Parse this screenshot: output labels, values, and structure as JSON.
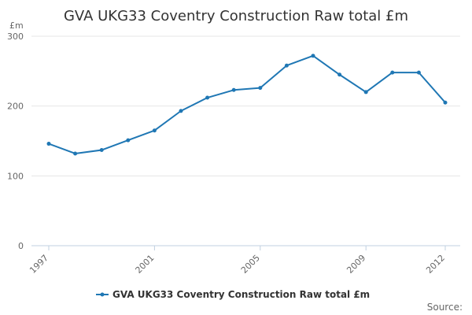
{
  "chart_data": {
    "type": "line",
    "title": "GVA UKG33 Coventry Construction Raw total £m",
    "unit_label": "£m",
    "source_label": "Source:",
    "x": [
      1997,
      1998,
      1999,
      2000,
      2001,
      2002,
      2003,
      2004,
      2005,
      2006,
      2007,
      2008,
      2009,
      2010,
      2011,
      2012
    ],
    "x_tick_labels": [
      "1997",
      "2001",
      "2005",
      "2009",
      "2012"
    ],
    "xlim": [
      1997,
      2012
    ],
    "y_ticks": [
      0,
      100,
      200,
      300
    ],
    "ylim": [
      0,
      300
    ],
    "grid": true,
    "legend_position": "bottom",
    "color": "#1f77b4",
    "series": [
      {
        "name": "GVA UKG33 Coventry Construction Raw total £m",
        "values": [
          146,
          132,
          137,
          151,
          165,
          193,
          212,
          223,
          226,
          258,
          272,
          245,
          220,
          248,
          248,
          205
        ]
      }
    ]
  }
}
